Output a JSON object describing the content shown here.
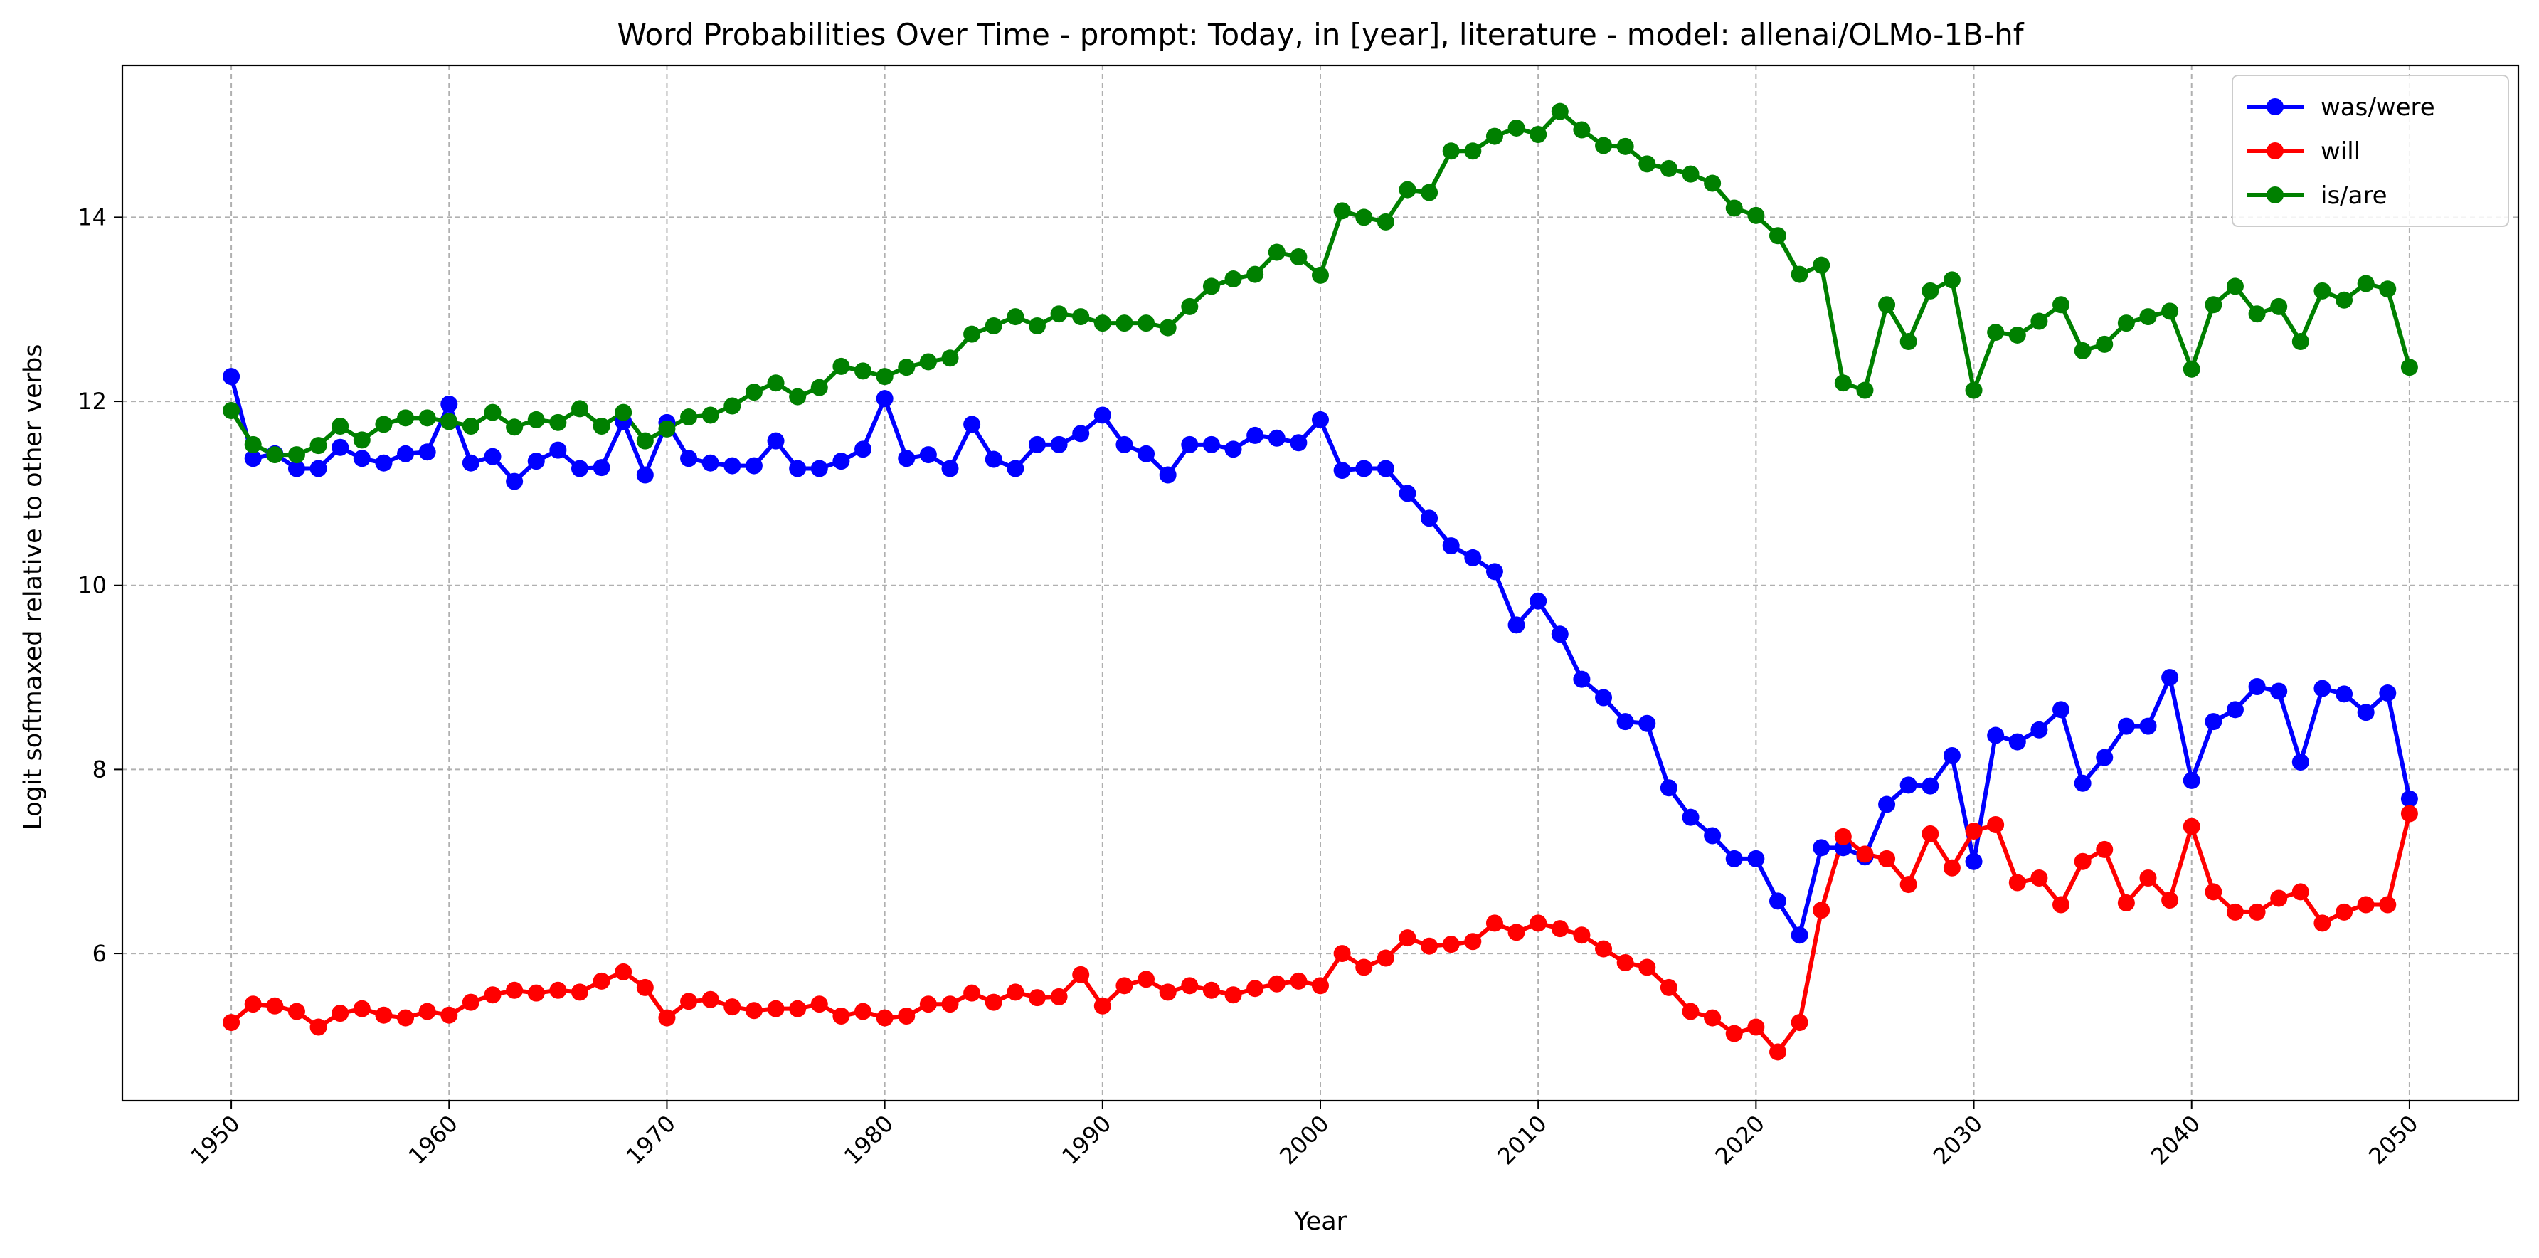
{
  "chart_data": {
    "type": "line",
    "title": "Word Probabilities Over Time - prompt: Today, in [year], literature - model: allenai/OLMo-1B-hf",
    "xlabel": "Year",
    "ylabel": "Logit softmaxed relative to other verbs",
    "xlim": [
      1945,
      2055
    ],
    "ylim": [
      4.4,
      15.65
    ],
    "xticks": [
      1950,
      1960,
      1970,
      1980,
      1990,
      2000,
      2010,
      2020,
      2030,
      2040,
      2050
    ],
    "yticks": [
      6,
      8,
      10,
      12,
      14
    ],
    "grid": true,
    "legend_position": "top-right",
    "x_start": 1950,
    "series": [
      {
        "name": "was/were",
        "color": "#0000ff",
        "values": [
          12.27,
          11.38,
          11.43,
          11.27,
          11.27,
          11.5,
          11.38,
          11.33,
          11.43,
          11.45,
          11.97,
          11.33,
          11.4,
          11.13,
          11.35,
          11.47,
          11.27,
          11.28,
          11.78,
          11.2,
          11.77,
          11.38,
          11.33,
          11.3,
          11.3,
          11.57,
          11.27,
          11.27,
          11.35,
          11.48,
          12.03,
          11.38,
          11.42,
          11.27,
          11.75,
          11.37,
          11.27,
          11.53,
          11.53,
          11.65,
          11.85,
          11.53,
          11.43,
          11.2,
          11.53,
          11.53,
          11.48,
          11.63,
          11.6,
          11.55,
          11.8,
          11.25,
          11.27,
          11.27,
          11.0,
          10.73,
          10.43,
          10.3,
          10.15,
          9.57,
          9.83,
          9.47,
          8.98,
          8.78,
          8.52,
          8.5,
          7.8,
          7.48,
          7.28,
          7.03,
          7.03,
          6.57,
          6.2,
          7.15,
          7.15,
          7.05,
          7.62,
          7.83,
          7.82,
          8.15,
          7.0,
          8.37,
          8.3,
          8.43,
          8.65,
          7.85,
          8.13,
          8.47,
          8.47,
          9.0,
          7.88,
          8.52,
          8.65,
          8.9,
          8.85,
          8.08,
          8.88,
          8.82,
          8.62,
          8.83,
          7.68
        ]
      },
      {
        "name": "will",
        "color": "#ff0000",
        "values": [
          5.25,
          5.45,
          5.43,
          5.37,
          5.2,
          5.35,
          5.4,
          5.33,
          5.3,
          5.37,
          5.33,
          5.47,
          5.55,
          5.6,
          5.57,
          5.6,
          5.58,
          5.7,
          5.8,
          5.63,
          5.3,
          5.48,
          5.5,
          5.42,
          5.38,
          5.4,
          5.4,
          5.45,
          5.32,
          5.37,
          5.3,
          5.32,
          5.45,
          5.45,
          5.57,
          5.47,
          5.58,
          5.52,
          5.53,
          5.77,
          5.43,
          5.65,
          5.72,
          5.58,
          5.65,
          5.6,
          5.55,
          5.62,
          5.67,
          5.7,
          5.65,
          6.0,
          5.85,
          5.95,
          6.17,
          6.08,
          6.1,
          6.13,
          6.33,
          6.23,
          6.33,
          6.27,
          6.2,
          6.05,
          5.9,
          5.85,
          5.63,
          5.37,
          5.3,
          5.13,
          5.2,
          4.93,
          5.25,
          6.47,
          7.27,
          7.08,
          7.03,
          6.75,
          7.3,
          6.93,
          7.33,
          7.4,
          6.77,
          6.82,
          6.53,
          7.0,
          7.13,
          6.55,
          6.82,
          6.58,
          7.38,
          6.67,
          6.45,
          6.45,
          6.6,
          6.67,
          6.33,
          6.45,
          6.53,
          6.53,
          7.52
        ]
      },
      {
        "name": "is/are",
        "color": "#008000",
        "values": [
          11.9,
          11.53,
          11.42,
          11.42,
          11.52,
          11.73,
          11.58,
          11.75,
          11.82,
          11.82,
          11.78,
          11.73,
          11.88,
          11.72,
          11.8,
          11.77,
          11.92,
          11.73,
          11.88,
          11.57,
          11.7,
          11.83,
          11.85,
          11.95,
          12.1,
          12.2,
          12.05,
          12.15,
          12.38,
          12.33,
          12.27,
          12.37,
          12.43,
          12.47,
          12.73,
          12.82,
          12.92,
          12.82,
          12.95,
          12.92,
          12.85,
          12.85,
          12.85,
          12.8,
          13.03,
          13.25,
          13.33,
          13.38,
          13.62,
          13.57,
          13.37,
          14.07,
          14.0,
          13.95,
          14.3,
          14.27,
          14.72,
          14.72,
          14.88,
          14.97,
          14.9,
          15.15,
          14.95,
          14.78,
          14.77,
          14.58,
          14.53,
          14.47,
          14.37,
          14.1,
          14.02,
          13.8,
          13.38,
          13.48,
          12.2,
          12.12,
          13.05,
          12.65,
          13.2,
          13.32,
          12.12,
          12.75,
          12.72,
          12.87,
          13.05,
          12.55,
          12.62,
          12.85,
          12.92,
          12.98,
          12.35,
          13.05,
          13.25,
          12.95,
          13.03,
          12.65,
          13.2,
          13.1,
          13.28,
          13.22,
          12.37
        ]
      }
    ]
  }
}
